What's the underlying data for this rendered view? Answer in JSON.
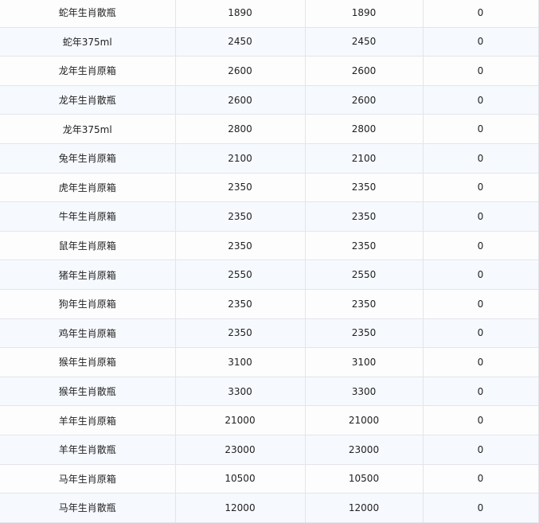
{
  "table": {
    "rows": [
      [
        "蛇年生肖散瓶",
        "1890",
        "1890",
        "0"
      ],
      [
        "蛇年375ml",
        "2450",
        "2450",
        "0"
      ],
      [
        "龙年生肖原箱",
        "2600",
        "2600",
        "0"
      ],
      [
        "龙年生肖散瓶",
        "2600",
        "2600",
        "0"
      ],
      [
        "龙年375ml",
        "2800",
        "2800",
        "0"
      ],
      [
        "兔年生肖原箱",
        "2100",
        "2100",
        "0"
      ],
      [
        "虎年生肖原箱",
        "2350",
        "2350",
        "0"
      ],
      [
        "牛年生肖原箱",
        "2350",
        "2350",
        "0"
      ],
      [
        "鼠年生肖原箱",
        "2350",
        "2350",
        "0"
      ],
      [
        "猪年生肖原箱",
        "2550",
        "2550",
        "0"
      ],
      [
        "狗年生肖原箱",
        "2350",
        "2350",
        "0"
      ],
      [
        "鸡年生肖原箱",
        "2350",
        "2350",
        "0"
      ],
      [
        "猴年生肖原箱",
        "3100",
        "3100",
        "0"
      ],
      [
        "猴年生肖散瓶",
        "3300",
        "3300",
        "0"
      ],
      [
        "羊年生肖原箱",
        "21000",
        "21000",
        "0"
      ],
      [
        "羊年生肖散瓶",
        "23000",
        "23000",
        "0"
      ],
      [
        "马年生肖原箱",
        "10500",
        "10500",
        "0"
      ],
      [
        "马年生肖散瓶",
        "12000",
        "12000",
        "0"
      ]
    ]
  }
}
